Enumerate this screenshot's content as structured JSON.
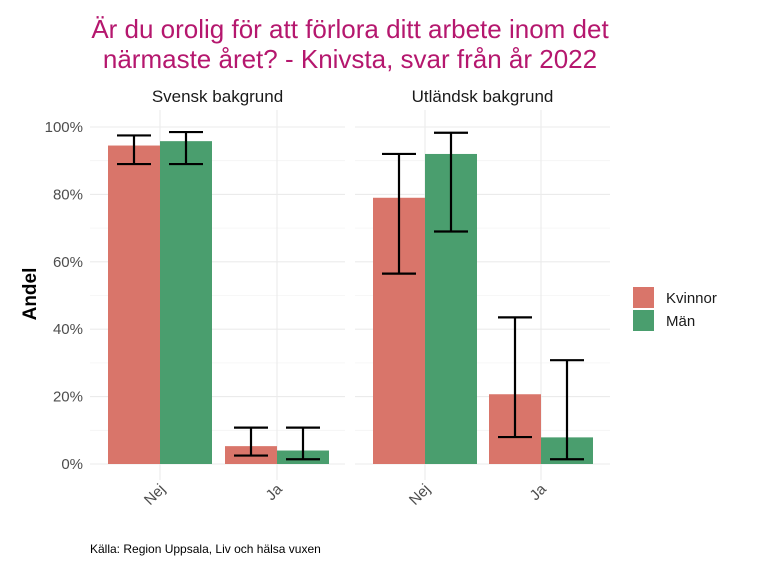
{
  "chart_data": {
    "type": "bar",
    "title_lines": [
      "Är du orolig för att förlora ditt arbete inom det",
      "närmaste året? - Knivsta, svar från år 2022"
    ],
    "title_color": "#b5176e",
    "ylabel": "Andel",
    "ylim": [
      0,
      1
    ],
    "yticks": [
      0,
      0.2,
      0.4,
      0.6,
      0.8,
      1.0
    ],
    "ytick_labels": [
      "0%",
      "20%",
      "40%",
      "60%",
      "80%",
      "100%"
    ],
    "categories": [
      "Nej",
      "Ja"
    ],
    "series": [
      {
        "name": "Kvinnor",
        "color": "#d9756a"
      },
      {
        "name": "Män",
        "color": "#4a9e6e"
      }
    ],
    "facets": [
      {
        "name": "Svensk bakgrund",
        "values": [
          [
            0.945,
            0.053
          ],
          [
            0.958,
            0.04
          ]
        ],
        "lower": [
          [
            0.89,
            0.025
          ],
          [
            0.89,
            0.014
          ]
        ],
        "upper": [
          [
            0.975,
            0.108
          ],
          [
            0.985,
            0.108
          ]
        ]
      },
      {
        "name": "Utländsk bakgrund",
        "values": [
          [
            0.79,
            0.207
          ],
          [
            0.92,
            0.079
          ]
        ],
        "lower": [
          [
            0.565,
            0.08
          ],
          [
            0.69,
            0.014
          ]
        ],
        "upper": [
          [
            0.92,
            0.435
          ],
          [
            0.983,
            0.308
          ]
        ]
      }
    ],
    "legend_position": "right",
    "grid": true,
    "caption": "Källa: Region Uppsala, Liv och hälsa vuxen"
  }
}
